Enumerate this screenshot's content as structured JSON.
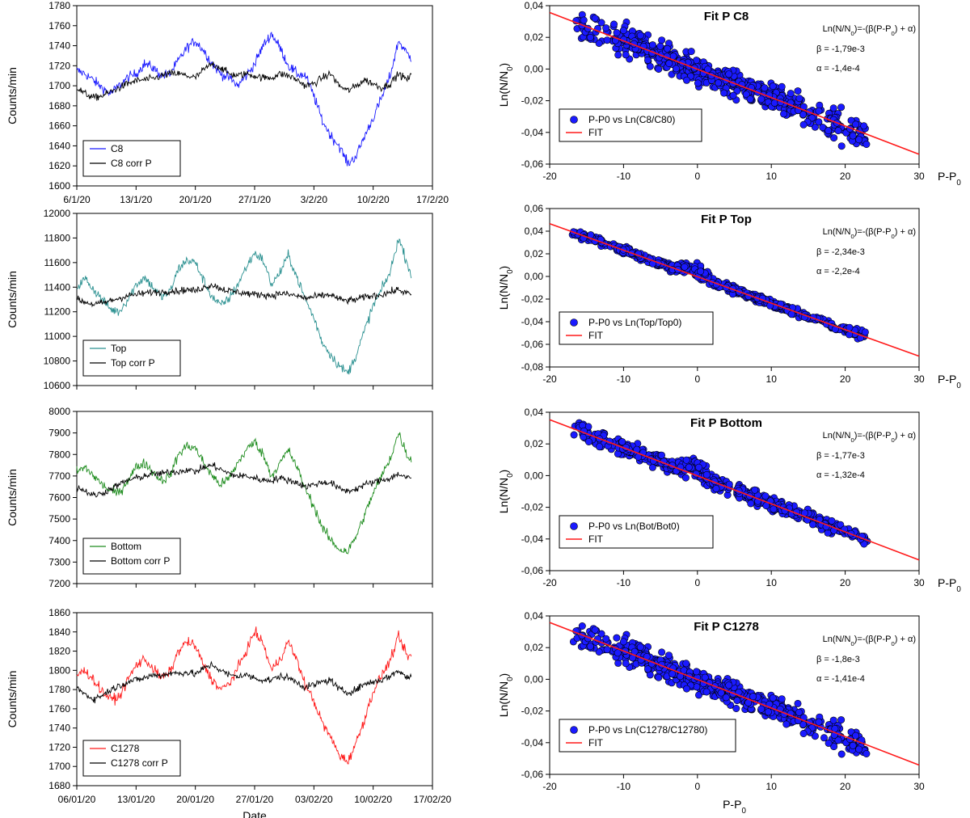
{
  "chart_data": [
    {
      "id": "ts_c8",
      "type": "line",
      "ylabel": "Counts/min",
      "xlabel": "",
      "ylim": [
        1600,
        1780
      ],
      "yticks": [
        1600,
        1620,
        1640,
        1660,
        1680,
        1700,
        1720,
        1740,
        1760,
        1780
      ],
      "xticks": [
        "6/1/20",
        "13/1/20",
        "20/1/20",
        "27/1/20",
        "3/2/20",
        "10/2/20",
        "17/2/20"
      ],
      "x_range_days": [
        0,
        42
      ],
      "legend": [
        "C8",
        "C8 corr P"
      ],
      "legend_position": "bottom-left",
      "series": [
        {
          "name": "C8",
          "color": "#1a1aff",
          "x": [
            0,
            1,
            2,
            3,
            4,
            5,
            6,
            7,
            8,
            9,
            10,
            11,
            12,
            13,
            14,
            15,
            16,
            17,
            18,
            19,
            20,
            21,
            22,
            23,
            24,
            25,
            26,
            27,
            28,
            29,
            30,
            31,
            32,
            33,
            34,
            35,
            36,
            37,
            38,
            39,
            39.5
          ],
          "values": [
            1715,
            1712,
            1705,
            1698,
            1692,
            1700,
            1708,
            1712,
            1722,
            1718,
            1710,
            1712,
            1725,
            1738,
            1745,
            1735,
            1722,
            1712,
            1708,
            1700,
            1710,
            1722,
            1740,
            1752,
            1738,
            1720,
            1712,
            1710,
            1690,
            1665,
            1650,
            1640,
            1622,
            1630,
            1650,
            1668,
            1688,
            1710,
            1745,
            1732,
            1728
          ]
        },
        {
          "name": "C8 corr P",
          "color": "#000000",
          "x": [
            0,
            1,
            2,
            3,
            4,
            5,
            6,
            7,
            8,
            9,
            10,
            11,
            12,
            13,
            14,
            15,
            16,
            17,
            18,
            19,
            20,
            21,
            22,
            23,
            24,
            25,
            26,
            27,
            28,
            29,
            30,
            31,
            32,
            33,
            34,
            35,
            36,
            37,
            38,
            39,
            39.5
          ],
          "values": [
            1698,
            1692,
            1688,
            1690,
            1694,
            1698,
            1702,
            1705,
            1706,
            1707,
            1710,
            1712,
            1712,
            1710,
            1708,
            1716,
            1722,
            1718,
            1712,
            1710,
            1712,
            1710,
            1708,
            1708,
            1712,
            1710,
            1706,
            1700,
            1702,
            1708,
            1712,
            1700,
            1695,
            1700,
            1706,
            1702,
            1698,
            1702,
            1712,
            1706,
            1710
          ]
        }
      ]
    },
    {
      "id": "ts_top",
      "type": "line",
      "ylabel": "Counts/min",
      "xlabel": "",
      "ylim": [
        10600,
        12000
      ],
      "yticks": [
        10600,
        10800,
        11000,
        11200,
        11400,
        11600,
        11800,
        12000
      ],
      "xticks": [],
      "x_range_days": [
        0,
        42
      ],
      "legend": [
        "Top",
        "Top corr P"
      ],
      "legend_position": "bottom-left",
      "series": [
        {
          "name": "Top",
          "color": "#2a9090",
          "x": [
            0,
            1,
            2,
            3,
            4,
            5,
            6,
            7,
            8,
            9,
            10,
            11,
            12,
            13,
            14,
            15,
            16,
            17,
            18,
            19,
            20,
            21,
            22,
            23,
            24,
            25,
            26,
            27,
            28,
            29,
            30,
            31,
            32,
            33,
            34,
            35,
            36,
            37,
            38,
            39,
            39.5
          ],
          "values": [
            11400,
            11470,
            11380,
            11300,
            11220,
            11200,
            11300,
            11420,
            11480,
            11400,
            11320,
            11360,
            11550,
            11620,
            11600,
            11450,
            11320,
            11250,
            11310,
            11420,
            11560,
            11680,
            11620,
            11420,
            11520,
            11660,
            11480,
            11300,
            11150,
            10950,
            10850,
            10760,
            10700,
            10850,
            11050,
            11250,
            11380,
            11520,
            11800,
            11600,
            11500
          ]
        },
        {
          "name": "Top corr P",
          "color": "#000000",
          "x": [
            0,
            1,
            2,
            3,
            4,
            5,
            6,
            7,
            8,
            9,
            10,
            11,
            12,
            13,
            14,
            15,
            16,
            17,
            18,
            19,
            20,
            21,
            22,
            23,
            24,
            25,
            26,
            27,
            28,
            29,
            30,
            31,
            32,
            33,
            34,
            35,
            36,
            37,
            38,
            39,
            39.5
          ],
          "values": [
            11300,
            11280,
            11260,
            11270,
            11290,
            11310,
            11330,
            11340,
            11350,
            11360,
            11360,
            11370,
            11370,
            11380,
            11370,
            11400,
            11420,
            11390,
            11370,
            11360,
            11350,
            11340,
            11340,
            11330,
            11350,
            11340,
            11330,
            11310,
            11320,
            11330,
            11340,
            11300,
            11290,
            11300,
            11320,
            11330,
            11340,
            11360,
            11380,
            11350,
            11340
          ]
        }
      ]
    },
    {
      "id": "ts_bottom",
      "type": "line",
      "ylabel": "Counts/min",
      "xlabel": "",
      "ylim": [
        7200,
        8000
      ],
      "yticks": [
        7200,
        7300,
        7400,
        7500,
        7600,
        7700,
        7800,
        7900,
        8000
      ],
      "xticks": [],
      "x_range_days": [
        0,
        42
      ],
      "legend": [
        "Bottom",
        "Bottom corr P"
      ],
      "legend_position": "bottom-left",
      "series": [
        {
          "name": "Bottom",
          "color": "#1e8c1e",
          "x": [
            0,
            1,
            2,
            3,
            4,
            5,
            6,
            7,
            8,
            9,
            10,
            11,
            12,
            13,
            14,
            15,
            16,
            17,
            18,
            19,
            20,
            21,
            22,
            23,
            24,
            25,
            26,
            27,
            28,
            29,
            30,
            31,
            32,
            33,
            34,
            35,
            36,
            37,
            38,
            39,
            39.5
          ],
          "values": [
            7720,
            7740,
            7700,
            7660,
            7630,
            7620,
            7680,
            7740,
            7760,
            7720,
            7680,
            7700,
            7800,
            7840,
            7830,
            7760,
            7700,
            7660,
            7690,
            7760,
            7820,
            7860,
            7800,
            7700,
            7760,
            7820,
            7740,
            7640,
            7560,
            7460,
            7400,
            7360,
            7350,
            7420,
            7520,
            7620,
            7700,
            7780,
            7900,
            7800,
            7770
          ]
        },
        {
          "name": "Bottom corr P",
          "color": "#000000",
          "x": [
            0,
            1,
            2,
            3,
            4,
            5,
            6,
            7,
            8,
            9,
            10,
            11,
            12,
            13,
            14,
            15,
            16,
            17,
            18,
            19,
            20,
            21,
            22,
            23,
            24,
            25,
            26,
            27,
            28,
            29,
            30,
            31,
            32,
            33,
            34,
            35,
            36,
            37,
            38,
            39,
            39.5
          ],
          "values": [
            7650,
            7630,
            7610,
            7620,
            7640,
            7660,
            7680,
            7690,
            7700,
            7710,
            7710,
            7720,
            7720,
            7730,
            7720,
            7740,
            7750,
            7730,
            7710,
            7700,
            7700,
            7690,
            7680,
            7680,
            7690,
            7680,
            7670,
            7650,
            7660,
            7670,
            7670,
            7640,
            7630,
            7640,
            7660,
            7670,
            7680,
            7690,
            7710,
            7690,
            7690
          ]
        }
      ]
    },
    {
      "id": "ts_c1278",
      "type": "line",
      "ylabel": "Counts/min",
      "xlabel": "Date",
      "ylim": [
        1680,
        1860
      ],
      "yticks": [
        1680,
        1700,
        1720,
        1740,
        1760,
        1780,
        1800,
        1820,
        1840,
        1860
      ],
      "xticks": [
        "06/01/20",
        "13/01/20",
        "20/01/20",
        "27/01/20",
        "03/02/20",
        "10/02/20",
        "17/02/20"
      ],
      "x_range_days": [
        0,
        42
      ],
      "legend": [
        "C1278",
        "C1278 corr P"
      ],
      "legend_position": "bottom-left",
      "series": [
        {
          "name": "C1278",
          "color": "#ff1a1a",
          "x": [
            0,
            1,
            2,
            3,
            4,
            5,
            6,
            7,
            8,
            9,
            10,
            11,
            12,
            13,
            14,
            15,
            16,
            17,
            18,
            19,
            20,
            21,
            22,
            23,
            24,
            25,
            26,
            27,
            28,
            29,
            30,
            31,
            32,
            33,
            34,
            35,
            36,
            37,
            38,
            39,
            39.5
          ],
          "values": [
            1795,
            1800,
            1790,
            1778,
            1770,
            1772,
            1790,
            1805,
            1812,
            1802,
            1792,
            1798,
            1820,
            1830,
            1825,
            1805,
            1790,
            1780,
            1786,
            1802,
            1820,
            1840,
            1828,
            1800,
            1812,
            1830,
            1810,
            1785,
            1768,
            1745,
            1730,
            1712,
            1705,
            1725,
            1750,
            1778,
            1795,
            1810,
            1835,
            1815,
            1815
          ]
        },
        {
          "name": "C1278 corr P",
          "color": "#000000",
          "x": [
            0,
            1,
            2,
            3,
            4,
            5,
            6,
            7,
            8,
            9,
            10,
            11,
            12,
            13,
            14,
            15,
            16,
            17,
            18,
            19,
            20,
            21,
            22,
            23,
            24,
            25,
            26,
            27,
            28,
            29,
            30,
            31,
            32,
            33,
            34,
            35,
            36,
            37,
            38,
            39,
            39.5
          ],
          "values": [
            1782,
            1775,
            1770,
            1774,
            1780,
            1784,
            1788,
            1790,
            1792,
            1795,
            1795,
            1797,
            1797,
            1798,
            1796,
            1802,
            1806,
            1800,
            1795,
            1794,
            1795,
            1792,
            1790,
            1790,
            1794,
            1792,
            1788,
            1782,
            1785,
            1788,
            1790,
            1780,
            1777,
            1780,
            1786,
            1788,
            1790,
            1794,
            1800,
            1792,
            1794
          ]
        }
      ]
    },
    {
      "id": "fit_c8",
      "type": "scatter",
      "title": "Fit P C8",
      "ylabel": "Ln(N/N0)",
      "xlabel": "P-P0",
      "xlim": [
        -20,
        30
      ],
      "ylim": [
        -0.06,
        0.04
      ],
      "xticks": [
        -20,
        -10,
        0,
        10,
        20,
        30
      ],
      "yticks": [
        "-0,06",
        "-0,04",
        "-0,02",
        "0,00",
        "0,02",
        "0,04"
      ],
      "equation": "Ln(N/N0)=-(β(P-P0) + α)",
      "beta_text": "β = -1,79e-3",
      "alpha_text": "α = -1,4e-4",
      "beta": -0.00179,
      "alpha": -0.00014,
      "scatter_x_range": [
        -17,
        23
      ],
      "scatter_spread": 0.0085,
      "bump": 0,
      "legend": [
        "P-P0 vs Ln(C8/C80)",
        "FIT"
      ],
      "legend_position": "lower-left"
    },
    {
      "id": "fit_top",
      "type": "scatter",
      "title": "Fit P Top",
      "ylabel": "Ln(N/N0)",
      "xlabel": "P-P0",
      "xlim": [
        -20,
        30
      ],
      "ylim": [
        -0.08,
        0.06
      ],
      "xticks": [
        -20,
        -10,
        0,
        10,
        20,
        30
      ],
      "yticks": [
        "-0,08",
        "-0,06",
        "-0,04",
        "-0,02",
        "0,00",
        "0,02",
        "0,04",
        "0,06"
      ],
      "equation": "Ln(N/N0)=-(β(P-P0) + α)",
      "beta_text": "β = -2,34e-3",
      "alpha_text": "α = -2,2e-4",
      "beta": -0.00234,
      "alpha": -0.00022,
      "scatter_x_range": [
        -17,
        23
      ],
      "scatter_spread": 0.0035,
      "bump": 0.012,
      "legend": [
        "P-P0 vs Ln(Top/Top0)",
        "FIT"
      ],
      "legend_position": "lower-left"
    },
    {
      "id": "fit_bottom",
      "type": "scatter",
      "title": "Fit P Bottom",
      "ylabel": "Ln(N/N0)",
      "xlabel": "P-P0",
      "xlim": [
        -20,
        30
      ],
      "ylim": [
        -0.06,
        0.04
      ],
      "xticks": [
        -20,
        -10,
        0,
        10,
        20,
        30
      ],
      "yticks": [
        "-0,06",
        "-0,04",
        "-0,02",
        "0,00",
        "0,02",
        "0,04"
      ],
      "equation": "Ln(N/N0)=-(β(P-P0) + α)",
      "beta_text": "β = -1,77e-3",
      "alpha_text": "α = -1,32e-4",
      "beta": -0.00177,
      "alpha": -0.000132,
      "scatter_x_range": [
        -17,
        23
      ],
      "scatter_spread": 0.0045,
      "bump": 0.01,
      "legend": [
        "P-P0 vs Ln(Bot/Bot0)",
        "FIT"
      ],
      "legend_position": "lower-left"
    },
    {
      "id": "fit_c1278",
      "type": "scatter",
      "title": "Fit P C1278",
      "ylabel": "Ln(N/N0)",
      "xlabel": "P-P0",
      "xlim": [
        -20,
        30
      ],
      "ylim": [
        -0.06,
        0.04
      ],
      "xticks": [
        -20,
        -10,
        0,
        10,
        20,
        30
      ],
      "yticks": [
        "-0,06",
        "-0,04",
        "-0,02",
        "0,00",
        "0,02",
        "0,04"
      ],
      "equation": "Ln(N/N0)=-(β(P-P0) + α)",
      "beta_text": "β = -1,8e-3",
      "alpha_text": "α = -1,41e-4",
      "beta": -0.0018,
      "alpha": -0.000141,
      "scatter_x_range": [
        -17,
        23
      ],
      "scatter_spread": 0.0075,
      "bump": 0,
      "legend": [
        "P-P0 vs Ln(C1278/C12780)",
        "FIT"
      ],
      "legend_position": "lower-left"
    }
  ],
  "colors": {
    "scatter_fill": "#1a1aff",
    "fit_line": "#ff1a1a"
  }
}
